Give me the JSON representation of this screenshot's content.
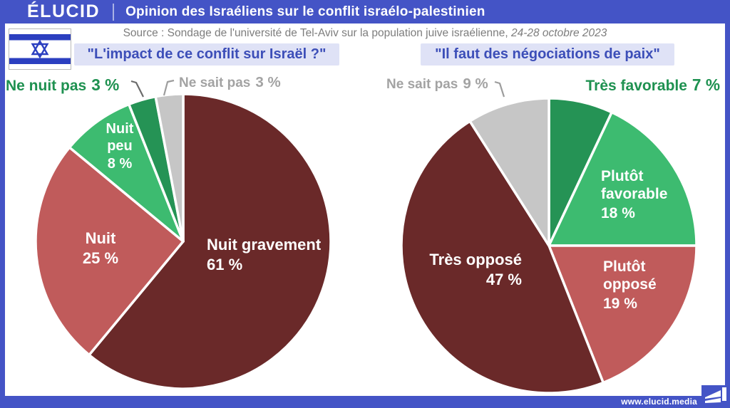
{
  "header": {
    "brand": "ÉLUCID",
    "title": "Opinion des Israéliens sur le conflit israélo-palestinien"
  },
  "source": {
    "text": "Source : Sondage de l'université de Tel-Aviv sur la population juive israélienne,",
    "date": "24-28 octobre 2023"
  },
  "footer": {
    "url": "www.elucid.media"
  },
  "flag": {
    "name": "israel-flag",
    "stripe_color": "#2b3fc0",
    "star_color": "#2b3fc0"
  },
  "colors": {
    "accent_blue": "#4454c6",
    "title_bg": "#dfe2f6",
    "title_text": "#3c4eb8",
    "source_gray": "#7d7d7d",
    "maroon": "#6a2929",
    "red": "#c05b5b",
    "green_light": "#3dbb70",
    "green_dark": "#259355",
    "gray": "#c6c6c6",
    "white_stroke": "#ffffff"
  },
  "chart_data": [
    {
      "type": "pie",
      "title": "\"L'impact de ce conflit sur Israël ?\"",
      "start_angle_deg": 0,
      "direction": "clockwise",
      "slices": [
        {
          "label": "Nuit gravement",
          "value": 61,
          "display": "61 %",
          "color": "#6a2929"
        },
        {
          "label": "Nuit",
          "value": 25,
          "display": "25 %",
          "color": "#c05b5b"
        },
        {
          "label": "Nuit peu",
          "value": 8,
          "display": "8 %",
          "color": "#3dbb70"
        },
        {
          "label": "Ne nuit pas",
          "value": 3,
          "display": "3 %",
          "color": "#259355"
        },
        {
          "label": "Ne sait pas",
          "value": 3,
          "display": "3 %",
          "color": "#c6c6c6"
        }
      ]
    },
    {
      "type": "pie",
      "title": "\"Il faut des négociations de paix\"",
      "start_angle_deg": 0,
      "direction": "clockwise",
      "slices": [
        {
          "label": "Très favorable",
          "value": 7,
          "display": "7 %",
          "color": "#259355"
        },
        {
          "label": "Plutôt favorable",
          "value": 18,
          "display": "18 %",
          "color": "#3dbb70"
        },
        {
          "label": "Plutôt opposé",
          "value": 19,
          "display": "19 %",
          "color": "#c05b5b"
        },
        {
          "label": "Très opposé",
          "value": 47,
          "display": "47 %",
          "color": "#6a2929"
        },
        {
          "label": "Ne sait pas",
          "value": 9,
          "display": "9 %",
          "color": "#c6c6c6"
        }
      ]
    }
  ]
}
